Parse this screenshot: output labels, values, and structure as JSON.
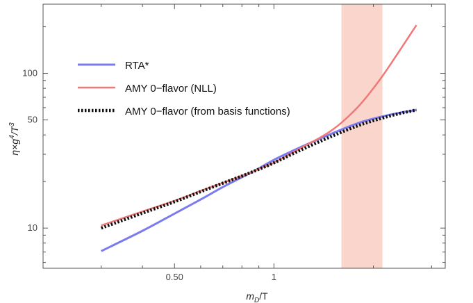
{
  "chart_data": {
    "type": "line",
    "xlabel_main": "m",
    "xlabel_sub": "D",
    "xlabel_tail": "/T",
    "ylabel_main": "η×g",
    "ylabel_sup1": "4",
    "ylabel_mid": "/T",
    "ylabel_sup2": "3",
    "x_scale": "log",
    "y_scale": "log",
    "xlim": [
      0.2,
      3.3
    ],
    "ylim": [
      5.5,
      280
    ],
    "x_ticks": [
      {
        "value": 0.5,
        "label": "0.50"
      },
      {
        "value": 1,
        "label": "1"
      }
    ],
    "y_ticks": [
      {
        "value": 10,
        "label": "10"
      },
      {
        "value": 50,
        "label": "50"
      },
      {
        "value": 100,
        "label": "100"
      }
    ],
    "band": {
      "x_range": [
        1.6,
        2.13
      ],
      "color": "#f9d5cc"
    },
    "legend_position": "top-left",
    "series": [
      {
        "name": "RTA*",
        "color": "#7b7bf0",
        "style": "solid",
        "x": [
          0.3,
          0.4,
          0.5,
          0.6,
          0.7,
          0.8,
          0.9,
          1.0,
          1.2,
          1.5,
          1.8,
          2.1,
          2.4,
          2.7
        ],
        "y": [
          7.1,
          9.6,
          12.4,
          15.3,
          18.4,
          21.3,
          24.3,
          27.6,
          33.2,
          40.9,
          47.7,
          52.3,
          55.6,
          58.0
        ]
      },
      {
        "name": "AMY 0−flavor (NLL)",
        "color": "#f07878",
        "style": "solid",
        "x": [
          0.3,
          0.4,
          0.5,
          0.6,
          0.7,
          0.8,
          0.9,
          1.0,
          1.2,
          1.5,
          1.8,
          2.1,
          2.4,
          2.7
        ],
        "y": [
          10.4,
          12.8,
          15.0,
          17.4,
          19.6,
          21.8,
          24.1,
          26.5,
          32.7,
          43.0,
          61.0,
          92.0,
          140.0,
          205.0
        ]
      },
      {
        "name": "AMY 0−flavor (from basis functions)",
        "color": "#111111",
        "style": "dotted",
        "x": [
          0.3,
          0.4,
          0.5,
          0.6,
          0.7,
          0.8,
          0.9,
          1.0,
          1.2,
          1.5,
          1.8,
          2.1,
          2.4,
          2.7
        ],
        "y": [
          10.0,
          12.5,
          14.8,
          17.2,
          19.5,
          21.7,
          24.0,
          26.4,
          31.8,
          39.3,
          46.0,
          51.0,
          55.0,
          58.0
        ]
      }
    ]
  }
}
